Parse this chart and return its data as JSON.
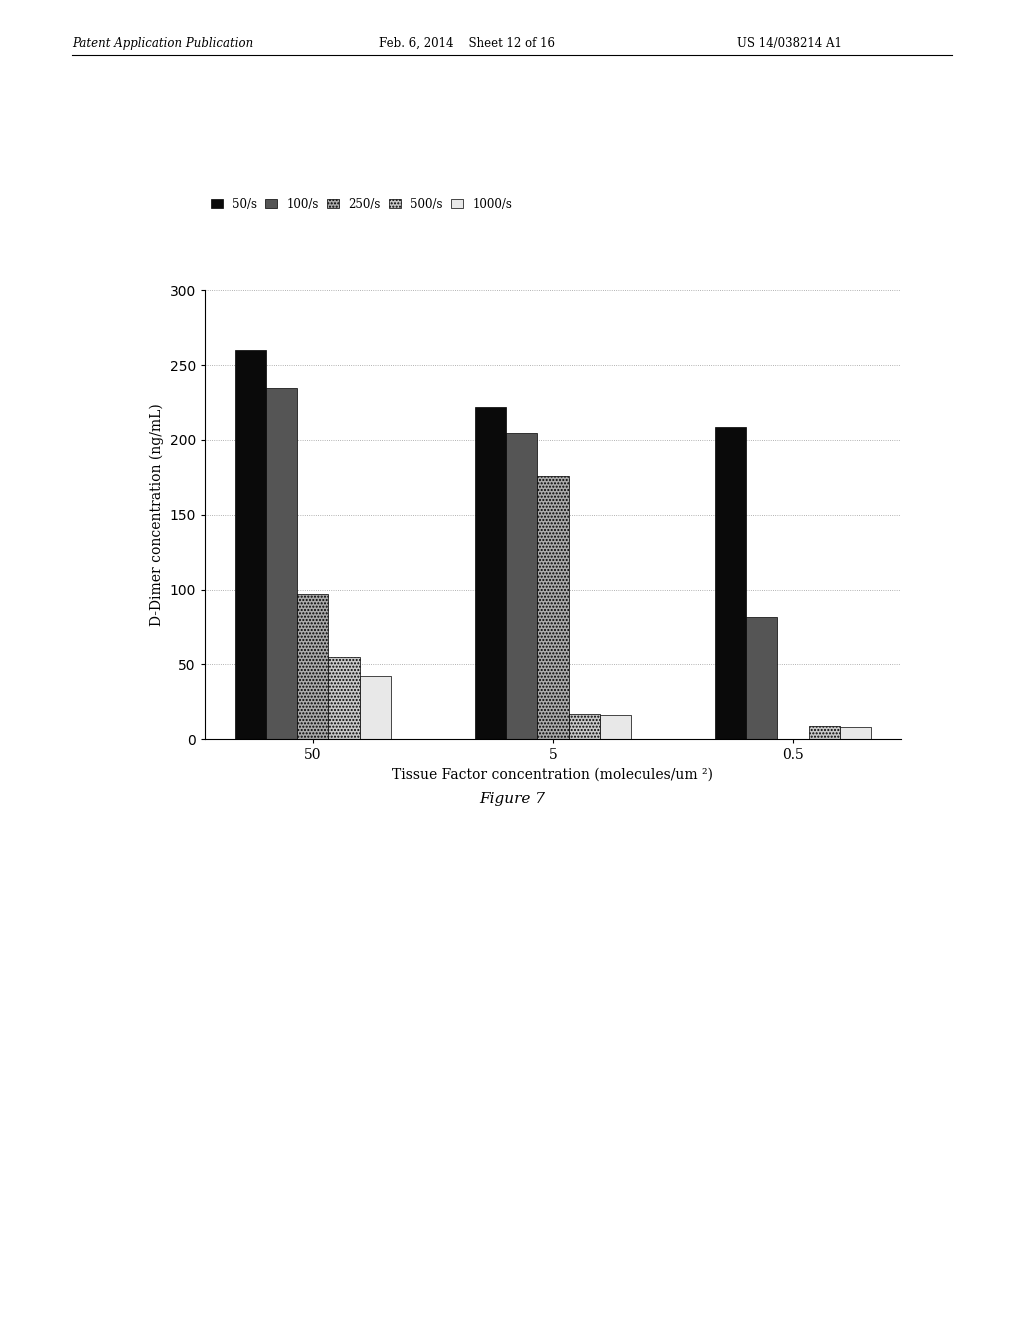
{
  "xlabel": "Tissue Factor concentration (molecules/um ²)",
  "ylabel": "D-Dimer concentration (ng/mL)",
  "categories": [
    "50",
    "5",
    "0.5"
  ],
  "series_labels": [
    "50/s",
    "100/s",
    "250/s",
    "500/s",
    "1000/s"
  ],
  "bar_colors": [
    "#0a0a0a",
    "#555555",
    "#aaaaaa",
    "#c8c8c8",
    "#e8e8e8"
  ],
  "values": [
    [
      260,
      235,
      97,
      55,
      42
    ],
    [
      222,
      205,
      176,
      17,
      16
    ],
    [
      209,
      82,
      0,
      9,
      8
    ]
  ],
  "ylim": [
    0,
    300
  ],
  "yticks": [
    0,
    50,
    100,
    150,
    200,
    250,
    300
  ],
  "bar_width": 0.13,
  "figsize": [
    10.24,
    13.2
  ],
  "dpi": 100,
  "header_left": "Patent Application Publication",
  "header_mid": "Feb. 6, 2014   Sheet 12 of 16",
  "header_right": "US 14/038214 A1",
  "figure_caption": "Figure 7"
}
